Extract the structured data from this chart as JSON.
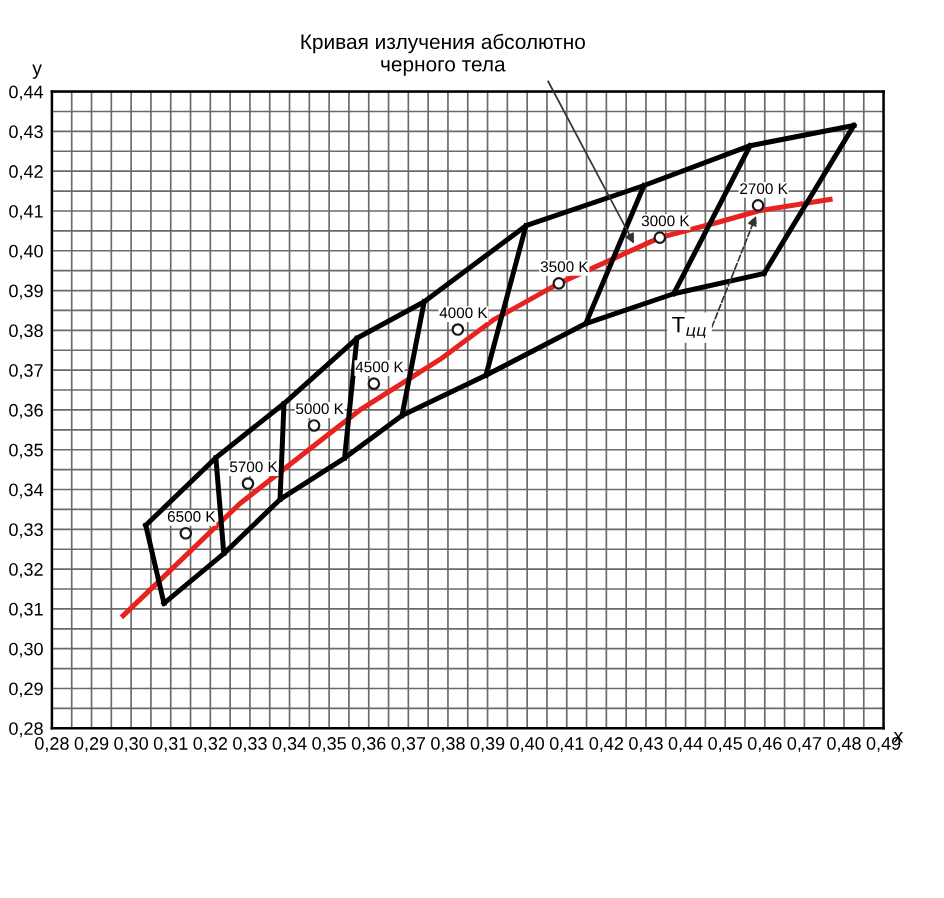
{
  "chart_data": {
    "type": "line",
    "xlabel": "x",
    "ylabel": "y",
    "xlim": [
      0.28,
      0.49
    ],
    "ylim": [
      0.28,
      0.44
    ],
    "xticks": [
      {
        "value": 0.28,
        "label": "0,28"
      },
      {
        "value": 0.285,
        "label": null
      },
      {
        "value": 0.29,
        "label": "0,29"
      },
      {
        "value": 0.295,
        "label": null
      },
      {
        "value": 0.3,
        "label": "0,30"
      },
      {
        "value": 0.305,
        "label": null
      },
      {
        "value": 0.31,
        "label": "0,31"
      },
      {
        "value": 0.315,
        "label": null
      },
      {
        "value": 0.32,
        "label": "0,32"
      },
      {
        "value": 0.325,
        "label": null
      },
      {
        "value": 0.33,
        "label": "0,33"
      },
      {
        "value": 0.335,
        "label": null
      },
      {
        "value": 0.34,
        "label": "0,34"
      },
      {
        "value": 0.345,
        "label": null
      },
      {
        "value": 0.35,
        "label": "0,35"
      },
      {
        "value": 0.355,
        "label": null
      },
      {
        "value": 0.36,
        "label": "0,36"
      },
      {
        "value": 0.365,
        "label": null
      },
      {
        "value": 0.37,
        "label": "0,37"
      },
      {
        "value": 0.375,
        "label": null
      },
      {
        "value": 0.38,
        "label": "0,38"
      },
      {
        "value": 0.385,
        "label": null
      },
      {
        "value": 0.39,
        "label": "0,39"
      },
      {
        "value": 0.395,
        "label": null
      },
      {
        "value": 0.4,
        "label": "0,40"
      },
      {
        "value": 0.405,
        "label": null
      },
      {
        "value": 0.41,
        "label": "0,41"
      },
      {
        "value": 0.415,
        "label": null
      },
      {
        "value": 0.42,
        "label": "0,42"
      },
      {
        "value": 0.425,
        "label": null
      },
      {
        "value": 0.43,
        "label": "0,43"
      },
      {
        "value": 0.435,
        "label": null
      },
      {
        "value": 0.44,
        "label": "0,44"
      },
      {
        "value": 0.445,
        "label": null
      },
      {
        "value": 0.45,
        "label": "0,45"
      },
      {
        "value": 0.455,
        "label": null
      },
      {
        "value": 0.46,
        "label": "0,46"
      },
      {
        "value": 0.465,
        "label": null
      },
      {
        "value": 0.47,
        "label": "0,47"
      },
      {
        "value": 0.475,
        "label": null
      },
      {
        "value": 0.48,
        "label": "0,48"
      },
      {
        "value": 0.485,
        "label": null
      },
      {
        "value": 0.49,
        "label": "0,49"
      }
    ],
    "yticks": [
      {
        "value": 0.28,
        "label": "0,28"
      },
      {
        "value": 0.285,
        "label": null
      },
      {
        "value": 0.29,
        "label": "0,29"
      },
      {
        "value": 0.295,
        "label": null
      },
      {
        "value": 0.3,
        "label": "0,30"
      },
      {
        "value": 0.305,
        "label": null
      },
      {
        "value": 0.31,
        "label": "0,31"
      },
      {
        "value": 0.315,
        "label": null
      },
      {
        "value": 0.32,
        "label": "0,32"
      },
      {
        "value": 0.325,
        "label": null
      },
      {
        "value": 0.33,
        "label": "0,33"
      },
      {
        "value": 0.335,
        "label": null
      },
      {
        "value": 0.34,
        "label": "0,34"
      },
      {
        "value": 0.345,
        "label": null
      },
      {
        "value": 0.35,
        "label": "0,35"
      },
      {
        "value": 0.355,
        "label": null
      },
      {
        "value": 0.36,
        "label": "0,36"
      },
      {
        "value": 0.365,
        "label": null
      },
      {
        "value": 0.37,
        "label": "0,37"
      },
      {
        "value": 0.375,
        "label": null
      },
      {
        "value": 0.38,
        "label": "0,38"
      },
      {
        "value": 0.385,
        "label": null
      },
      {
        "value": 0.39,
        "label": "0,39"
      },
      {
        "value": 0.395,
        "label": null
      },
      {
        "value": 0.4,
        "label": "0,40"
      },
      {
        "value": 0.405,
        "label": null
      },
      {
        "value": 0.41,
        "label": "0,41"
      },
      {
        "value": 0.415,
        "label": null
      },
      {
        "value": 0.42,
        "label": "0,42"
      },
      {
        "value": 0.425,
        "label": null
      },
      {
        "value": 0.43,
        "label": "0,43"
      },
      {
        "value": 0.435,
        "label": null
      },
      {
        "value": 0.44,
        "label": "0,44"
      }
    ],
    "grid": true,
    "line_style": "solid",
    "marker": "none",
    "series": [
      {
        "color": "#e8231f",
        "x": [
          0.298,
          0.3275,
          0.3527,
          0.3578,
          0.378,
          0.3916,
          0.408,
          0.4335,
          0.4487,
          0.4583,
          0.4765
        ],
        "values": [
          0.3083,
          0.3365,
          0.3561,
          0.36,
          0.3727,
          0.3827,
          0.3918,
          0.4033,
          0.4073,
          0.41,
          0.4129
        ]
      },
      {
        "color": "#000000",
        "x": [
          0.3037,
          0.3214,
          0.3386,
          0.357,
          0.374,
          0.3997,
          0.4295,
          0.4563,
          0.4825
        ],
        "values": [
          0.331,
          0.348,
          0.3616,
          0.378,
          0.3872,
          0.4063,
          0.4164,
          0.4264,
          0.4315
        ]
      },
      {
        "color": "#000000",
        "x": [
          0.3083,
          0.3234,
          0.3376,
          0.3539,
          0.3684,
          0.3896,
          0.4148,
          0.437,
          0.4598
        ],
        "values": [
          0.3114,
          0.3239,
          0.3375,
          0.3479,
          0.3586,
          0.3687,
          0.3817,
          0.3892,
          0.3943
        ]
      },
      {
        "color": "#000000",
        "x": [
          0.3037,
          0.3083
        ],
        "values": [
          0.331,
          0.3114
        ]
      },
      {
        "color": "#000000",
        "x": [
          0.3214,
          0.3234
        ],
        "values": [
          0.348,
          0.3239
        ]
      },
      {
        "color": "#000000",
        "x": [
          0.3386,
          0.3376
        ],
        "values": [
          0.3616,
          0.3375
        ]
      },
      {
        "color": "#000000",
        "x": [
          0.357,
          0.3539
        ],
        "values": [
          0.378,
          0.3479
        ]
      },
      {
        "color": "#000000",
        "x": [
          0.374,
          0.3684
        ],
        "values": [
          0.3872,
          0.3586
        ]
      },
      {
        "color": "#000000",
        "x": [
          0.3997,
          0.3896
        ],
        "values": [
          0.4063,
          0.3687
        ]
      },
      {
        "color": "#000000",
        "x": [
          0.4295,
          0.4148
        ],
        "values": [
          0.4164,
          0.3817
        ]
      },
      {
        "color": "#000000",
        "x": [
          0.4563,
          0.437
        ],
        "values": [
          0.4264,
          0.3892
        ]
      },
      {
        "color": "#000000",
        "x": [
          0.4825,
          0.4598
        ],
        "values": [
          0.4315,
          0.3943
        ]
      },
      {
        "type": "scatter",
        "marker": "circle",
        "color": "#ffffff",
        "x": [
          0.3138,
          0.3295,
          0.3462,
          0.3613,
          0.3825,
          0.408,
          0.4335,
          0.4583
        ],
        "values": [
          0.329,
          0.3415,
          0.3561,
          0.3666,
          0.3802,
          0.3918,
          0.4033,
          0.4114
        ]
      }
    ],
    "annotations": [
      {
        "text": "6500 K",
        "x": 0.3138,
        "y": 0.329
      },
      {
        "text": "5700 K",
        "x": 0.3295,
        "y": 0.3415
      },
      {
        "text": "5000 K",
        "x": 0.3462,
        "y": 0.3561
      },
      {
        "text": "4500 K",
        "x": 0.3613,
        "y": 0.3666
      },
      {
        "text": "4000 K",
        "x": 0.3825,
        "y": 0.3802
      },
      {
        "text": "3500 K",
        "x": 0.408,
        "y": 0.3918
      },
      {
        "text": "3000 K",
        "x": 0.4335,
        "y": 0.4033
      },
      {
        "text": "2700 K",
        "x": 0.4583,
        "y": 0.4114
      },
      {
        "text": "Кривая излучения абсолютно\nчерного тела",
        "x": 0.427,
        "y": 0.4018
      },
      {
        "text": "T$_{цц}$",
        "x": 0.4578,
        "y": 0.4088
      }
    ]
  }
}
